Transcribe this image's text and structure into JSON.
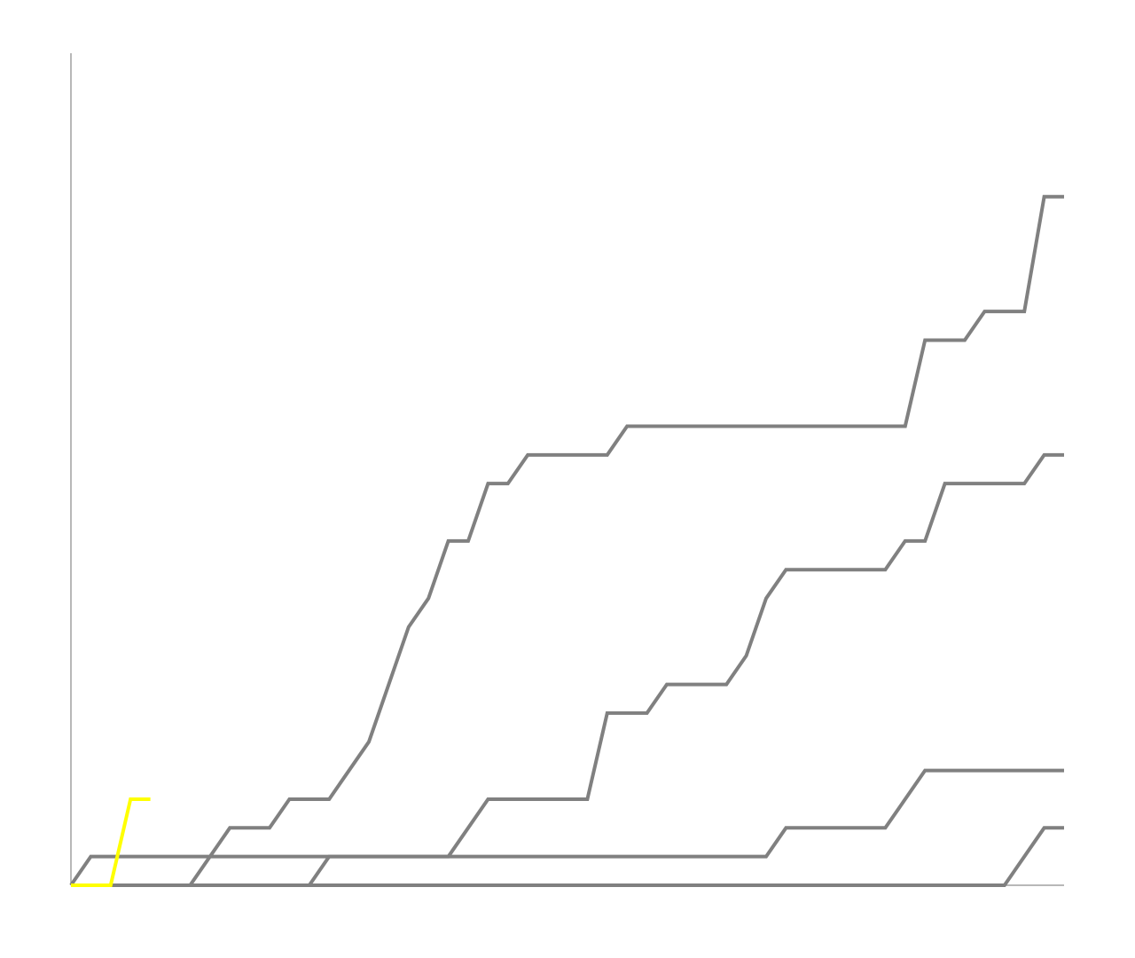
{
  "chart_data": {
    "type": "line",
    "title": "",
    "xlabel": "",
    "ylabel": "",
    "xlim": [
      0,
      50
    ],
    "ylim": [
      0,
      29
    ],
    "grid": false,
    "legend": "none",
    "series": [
      {
        "color": "#808080",
        "points": [
          [
            0,
            0
          ],
          [
            6,
            0
          ],
          [
            8,
            2
          ],
          [
            10,
            2
          ],
          [
            11,
            3
          ],
          [
            13,
            3
          ],
          [
            15,
            5
          ],
          [
            17,
            9
          ],
          [
            18,
            10
          ],
          [
            19,
            12
          ],
          [
            20,
            12
          ],
          [
            21,
            14
          ],
          [
            22,
            14
          ],
          [
            23,
            15
          ],
          [
            27,
            15
          ],
          [
            28,
            16
          ],
          [
            42,
            16
          ],
          [
            43,
            19
          ],
          [
            45,
            19
          ],
          [
            46,
            20
          ],
          [
            48,
            20
          ],
          [
            49,
            24
          ],
          [
            50,
            24
          ]
        ]
      },
      {
        "color": "#808080",
        "points": [
          [
            0,
            0
          ],
          [
            12,
            0
          ],
          [
            13,
            1
          ],
          [
            19,
            1
          ],
          [
            21,
            3
          ],
          [
            26,
            3
          ],
          [
            27,
            6
          ],
          [
            29,
            6
          ],
          [
            30,
            7
          ],
          [
            33,
            7
          ],
          [
            34,
            8
          ],
          [
            35,
            10
          ],
          [
            36,
            11
          ],
          [
            41,
            11
          ],
          [
            42,
            12
          ],
          [
            43,
            12
          ],
          [
            44,
            14
          ],
          [
            48,
            14
          ],
          [
            49,
            15
          ],
          [
            50,
            15
          ]
        ]
      },
      {
        "color": "#808080",
        "points": [
          [
            0,
            0
          ],
          [
            1,
            1
          ],
          [
            35,
            1
          ],
          [
            36,
            2
          ],
          [
            41,
            2
          ],
          [
            43,
            4
          ],
          [
            50,
            4
          ]
        ]
      },
      {
        "color": "#808080",
        "points": [
          [
            0,
            0
          ],
          [
            47,
            0
          ],
          [
            49,
            2
          ],
          [
            50,
            2
          ]
        ]
      },
      {
        "color": "#ffff00",
        "points": [
          [
            0,
            0
          ],
          [
            2,
            0
          ],
          [
            3,
            3
          ],
          [
            4,
            3
          ]
        ]
      }
    ]
  }
}
